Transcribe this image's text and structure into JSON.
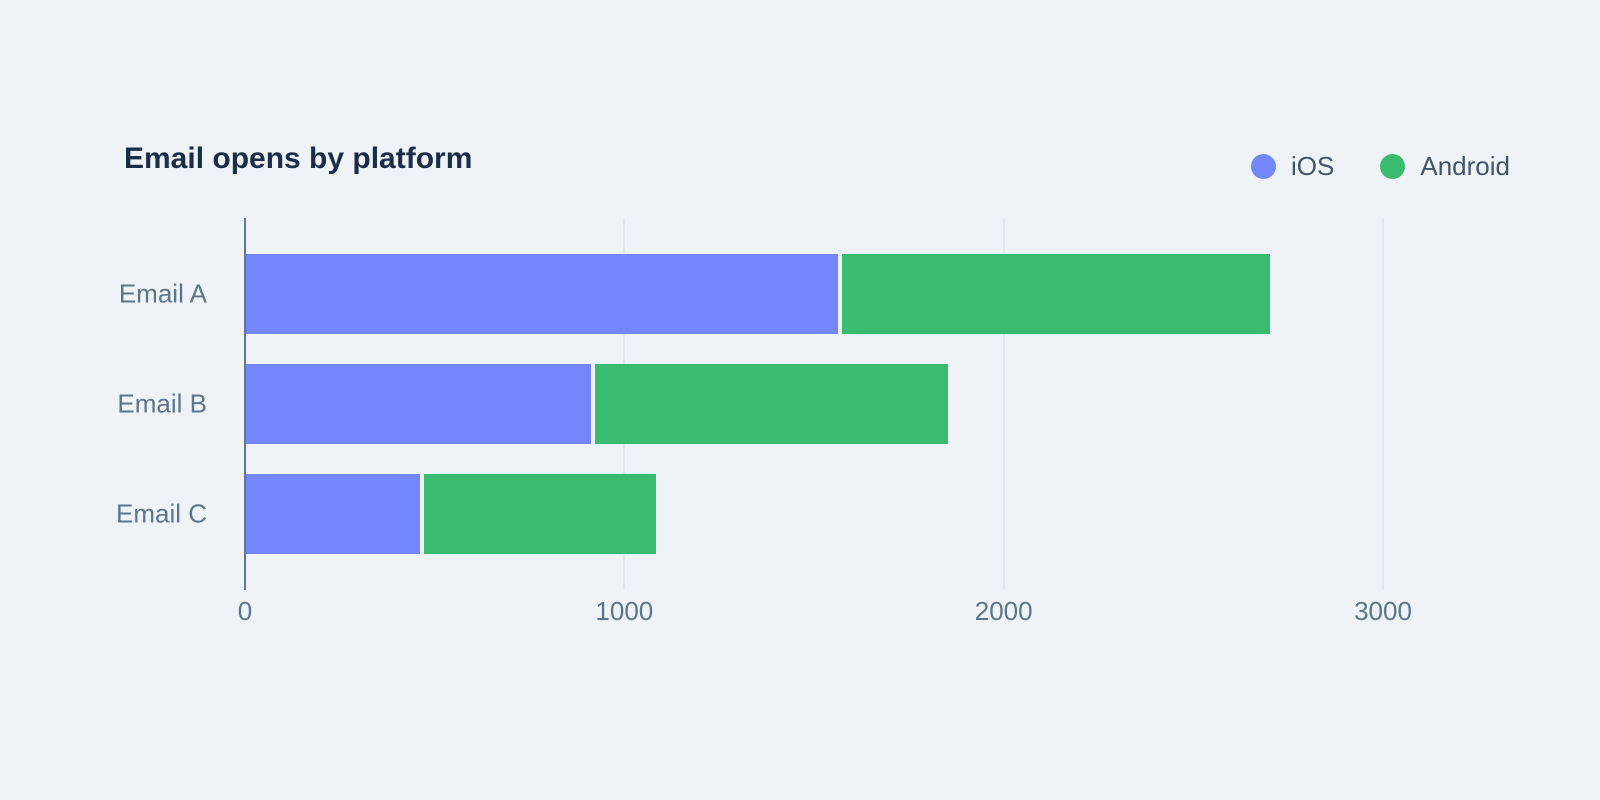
{
  "chart_data": {
    "type": "bar",
    "orientation": "horizontal",
    "stacked": true,
    "title": "Email opens by platform",
    "categories": [
      "Email A",
      "Email B",
      "Email C"
    ],
    "series": [
      {
        "name": "iOS",
        "color": "#7487FA",
        "values": [
          1570,
          920,
          470
        ]
      },
      {
        "name": "Android",
        "color": "#3ABC6F",
        "values": [
          1130,
          930,
          610
        ]
      }
    ],
    "xlim": [
      0,
      3000
    ],
    "x_ticks": [
      0,
      1000,
      2000,
      3000
    ],
    "x_tick_labels": [
      "0",
      "1000",
      "2000",
      "3000"
    ],
    "xlabel": "",
    "ylabel": "",
    "grid": true,
    "legend_position": "top-right"
  },
  "colors": {
    "background": "#EEF3F8",
    "title_text": "#1B2D47",
    "axis_text": "#5E7489",
    "legend_text": "#43536A",
    "gridline": "#E0E8F0",
    "axis_line": "#64798F"
  }
}
